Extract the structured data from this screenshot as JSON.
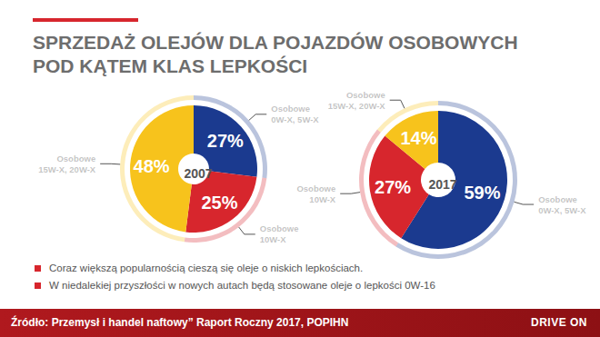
{
  "title": "SPRZEDAŻ OLEJÓW DLA POJAZDÓW OSOBOWYCH\nPOD KĄTEM KLAS LEPKOŚCI",
  "notes": [
    "Coraz większą popularnością cieszą się oleje o niskich lepkościach.",
    "W niedalekiej przyszłości w nowych autach będą stosowane oleje o lepkości  0W-16"
  ],
  "source": "Źródło: Przemysł i handel naftowy” Raport Roczny 2017, POPIHN",
  "brand": "DRIVE ON",
  "chart_data": [
    {
      "type": "pie",
      "title": "2007",
      "categories": [
        "Osobowe\n0W-X, 5W-X",
        "Osobowe\n10W-X",
        "Osobowe\n15W-X, 20W-X"
      ],
      "values": [
        27,
        25,
        48
      ],
      "value_labels": [
        "27%",
        "25%",
        "48%"
      ],
      "colors": [
        "#1b3a8f",
        "#d7262d",
        "#f7c31c"
      ],
      "data_labels": true
    },
    {
      "type": "pie",
      "title": "2017",
      "categories": [
        "Osobowe\n0W-X, 5W-X",
        "Osobowe\n10W-X",
        "Osobowe\n15W-X, 20W-X"
      ],
      "values": [
        59,
        27,
        14
      ],
      "value_labels": [
        "59%",
        "27%",
        "14%"
      ],
      "colors": [
        "#1b3a8f",
        "#d7262d",
        "#f7c31c"
      ],
      "data_labels": true
    }
  ]
}
